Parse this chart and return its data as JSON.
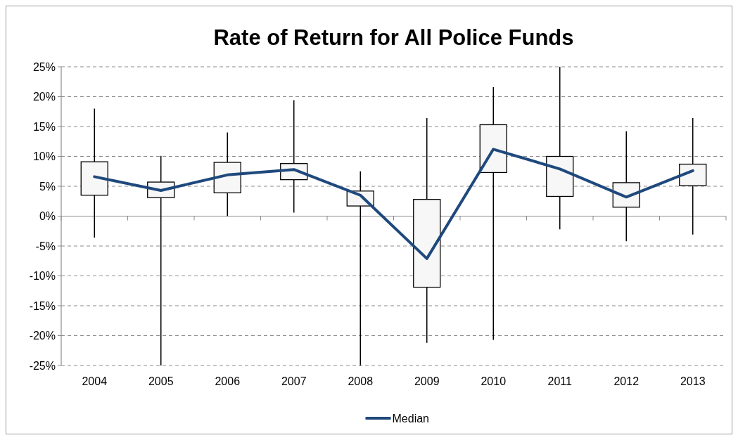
{
  "chart_data": {
    "type": "box",
    "title": "Rate of Return for All Police Funds",
    "categories": [
      "2004",
      "2005",
      "2006",
      "2007",
      "2008",
      "2009",
      "2010",
      "2011",
      "2012",
      "2013"
    ],
    "boxes": [
      {
        "low": -3.6,
        "q1": 3.5,
        "q3": 9.1,
        "high": 18
      },
      {
        "low": -25,
        "q1": 3.1,
        "q3": 5.7,
        "high": 10.1
      },
      {
        "low": 0,
        "q1": 3.9,
        "q3": 9,
        "high": 14
      },
      {
        "low": 0.6,
        "q1": 6.1,
        "q3": 8.8,
        "high": 19.4
      },
      {
        "low": -25,
        "q1": 1.7,
        "q3": 4.2,
        "high": 7.5
      },
      {
        "low": -21.2,
        "q1": -11.9,
        "q3": 2.8,
        "high": 16.4
      },
      {
        "low": -20.7,
        "q1": 7.3,
        "q3": 15.3,
        "high": 21.6
      },
      {
        "low": -2.2,
        "q1": 3.3,
        "q3": 10,
        "high": 25
      },
      {
        "low": -4.2,
        "q1": 1.5,
        "q3": 5.6,
        "high": 14.2
      },
      {
        "low": -3.1,
        "q1": 5.1,
        "q3": 8.7,
        "high": 16.4
      }
    ],
    "series": [
      {
        "type": "line",
        "name": "Median",
        "color": "#1f497d",
        "values": [
          6.6,
          4.3,
          6.9,
          7.8,
          3.5,
          -7.1,
          11.2,
          7.9,
          3.2,
          7.6
        ]
      }
    ],
    "ylim": [
      -25,
      25
    ],
    "yticks": [
      {
        "value": -25,
        "label": "-25%"
      },
      {
        "value": -20,
        "label": "-20%"
      },
      {
        "value": -15,
        "label": "-15%"
      },
      {
        "value": -10,
        "label": "-10%"
      },
      {
        "value": -5,
        "label": "-5%"
      },
      {
        "value": 0,
        "label": "0%"
      },
      {
        "value": 5,
        "label": "5%"
      },
      {
        "value": 10,
        "label": "10%"
      },
      {
        "value": 15,
        "label": "15%"
      },
      {
        "value": 20,
        "label": "20%"
      },
      {
        "value": 25,
        "label": "25%"
      }
    ],
    "grid": "y",
    "legend": "bottom",
    "marker": "none",
    "line_style": "solid"
  }
}
